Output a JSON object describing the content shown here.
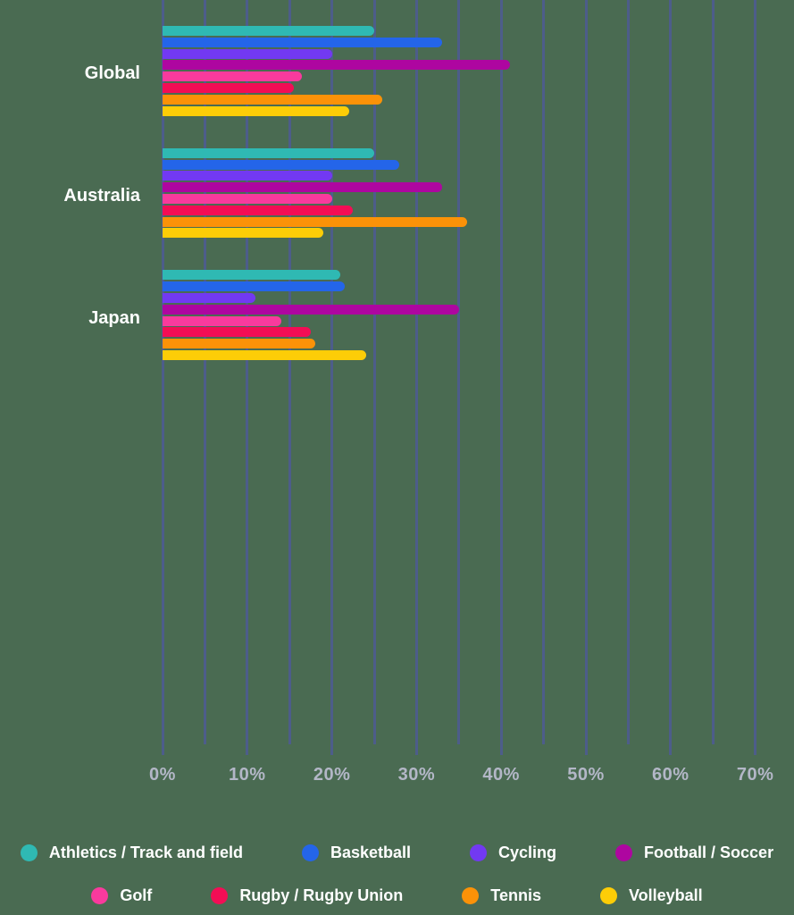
{
  "colors": {
    "background": "#4A6B52",
    "gridline": "#4D5D8A",
    "axis_label_text": "#B3B7C7",
    "category_label_text": "#FFFFFF",
    "legend_text": "#FFFFFF"
  },
  "chart_data": {
    "type": "bar",
    "orientation": "horizontal",
    "title": "",
    "xlabel": "",
    "ylabel": "",
    "grid": true,
    "legend_position": "bottom",
    "x_axis": {
      "min": 0,
      "max": 70,
      "unit": "%",
      "major_step": 10,
      "minor_step": 5,
      "tick_labels": [
        "0%",
        "10%",
        "20%",
        "30%",
        "40%",
        "50%",
        "60%",
        "70%"
      ]
    },
    "categories": [
      "Global",
      "Australia",
      "Japan"
    ],
    "series": [
      {
        "name": "Athletics / Track and field",
        "color": "#2FB9B3",
        "values": [
          25,
          25,
          21
        ]
      },
      {
        "name": "Basketball",
        "color": "#2465E9",
        "values": [
          33,
          28,
          21.5
        ]
      },
      {
        "name": "Cycling",
        "color": "#7239F2",
        "values": [
          20,
          20,
          11
        ]
      },
      {
        "name": "Football / Soccer",
        "color": "#AE06A0",
        "values": [
          41,
          33,
          35
        ]
      },
      {
        "name": "Golf",
        "color": "#F93A9D",
        "values": [
          16.5,
          20,
          14
        ]
      },
      {
        "name": "Rugby / Rugby Union",
        "color": "#F30D55",
        "values": [
          15.5,
          22.5,
          17.5
        ]
      },
      {
        "name": "Tennis",
        "color": "#FB9208",
        "values": [
          26,
          36,
          18
        ]
      },
      {
        "name": "Volleyball",
        "color": "#FDCD07",
        "values": [
          22,
          19,
          24
        ]
      }
    ],
    "legend_rows": [
      [
        0,
        1,
        2,
        3
      ],
      [
        4,
        5,
        6,
        7
      ]
    ]
  }
}
